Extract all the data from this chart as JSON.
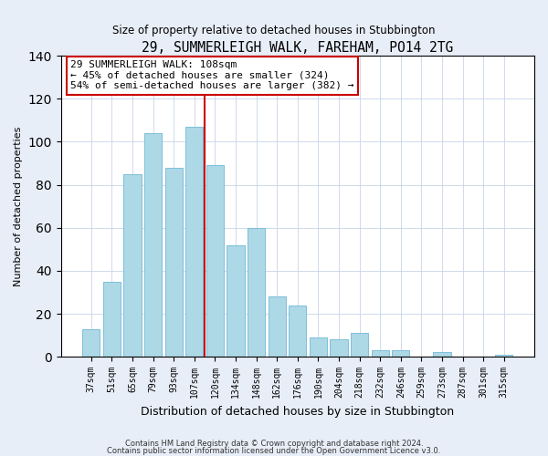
{
  "title": "29, SUMMERLEIGH WALK, FAREHAM, PO14 2TG",
  "subtitle": "Size of property relative to detached houses in Stubbington",
  "xlabel": "Distribution of detached houses by size in Stubbington",
  "ylabel": "Number of detached properties",
  "categories": [
    "37sqm",
    "51sqm",
    "65sqm",
    "79sqm",
    "93sqm",
    "107sqm",
    "120sqm",
    "134sqm",
    "148sqm",
    "162sqm",
    "176sqm",
    "190sqm",
    "204sqm",
    "218sqm",
    "232sqm",
    "246sqm",
    "259sqm",
    "273sqm",
    "287sqm",
    "301sqm",
    "315sqm"
  ],
  "values": [
    13,
    35,
    85,
    104,
    88,
    107,
    89,
    52,
    60,
    28,
    24,
    9,
    8,
    11,
    3,
    3,
    0,
    2,
    0,
    0,
    1
  ],
  "bar_color": "#add8e6",
  "bar_edge_color": "#7fbfda",
  "highlight_index": 5,
  "highlight_line_color": "#cc0000",
  "ylim": [
    0,
    140
  ],
  "yticks": [
    0,
    20,
    40,
    60,
    80,
    100,
    120,
    140
  ],
  "annotation_title": "29 SUMMERLEIGH WALK: 108sqm",
  "annotation_line1": "← 45% of detached houses are smaller (324)",
  "annotation_line2": "54% of semi-detached houses are larger (382) →",
  "annotation_box_color": "#ffffff",
  "annotation_box_edge": "#cc0000",
  "footnote1": "Contains HM Land Registry data © Crown copyright and database right 2024.",
  "footnote2": "Contains public sector information licensed under the Open Government Licence v3.0.",
  "background_color": "#e8eef8",
  "plot_bg_color": "#ffffff"
}
